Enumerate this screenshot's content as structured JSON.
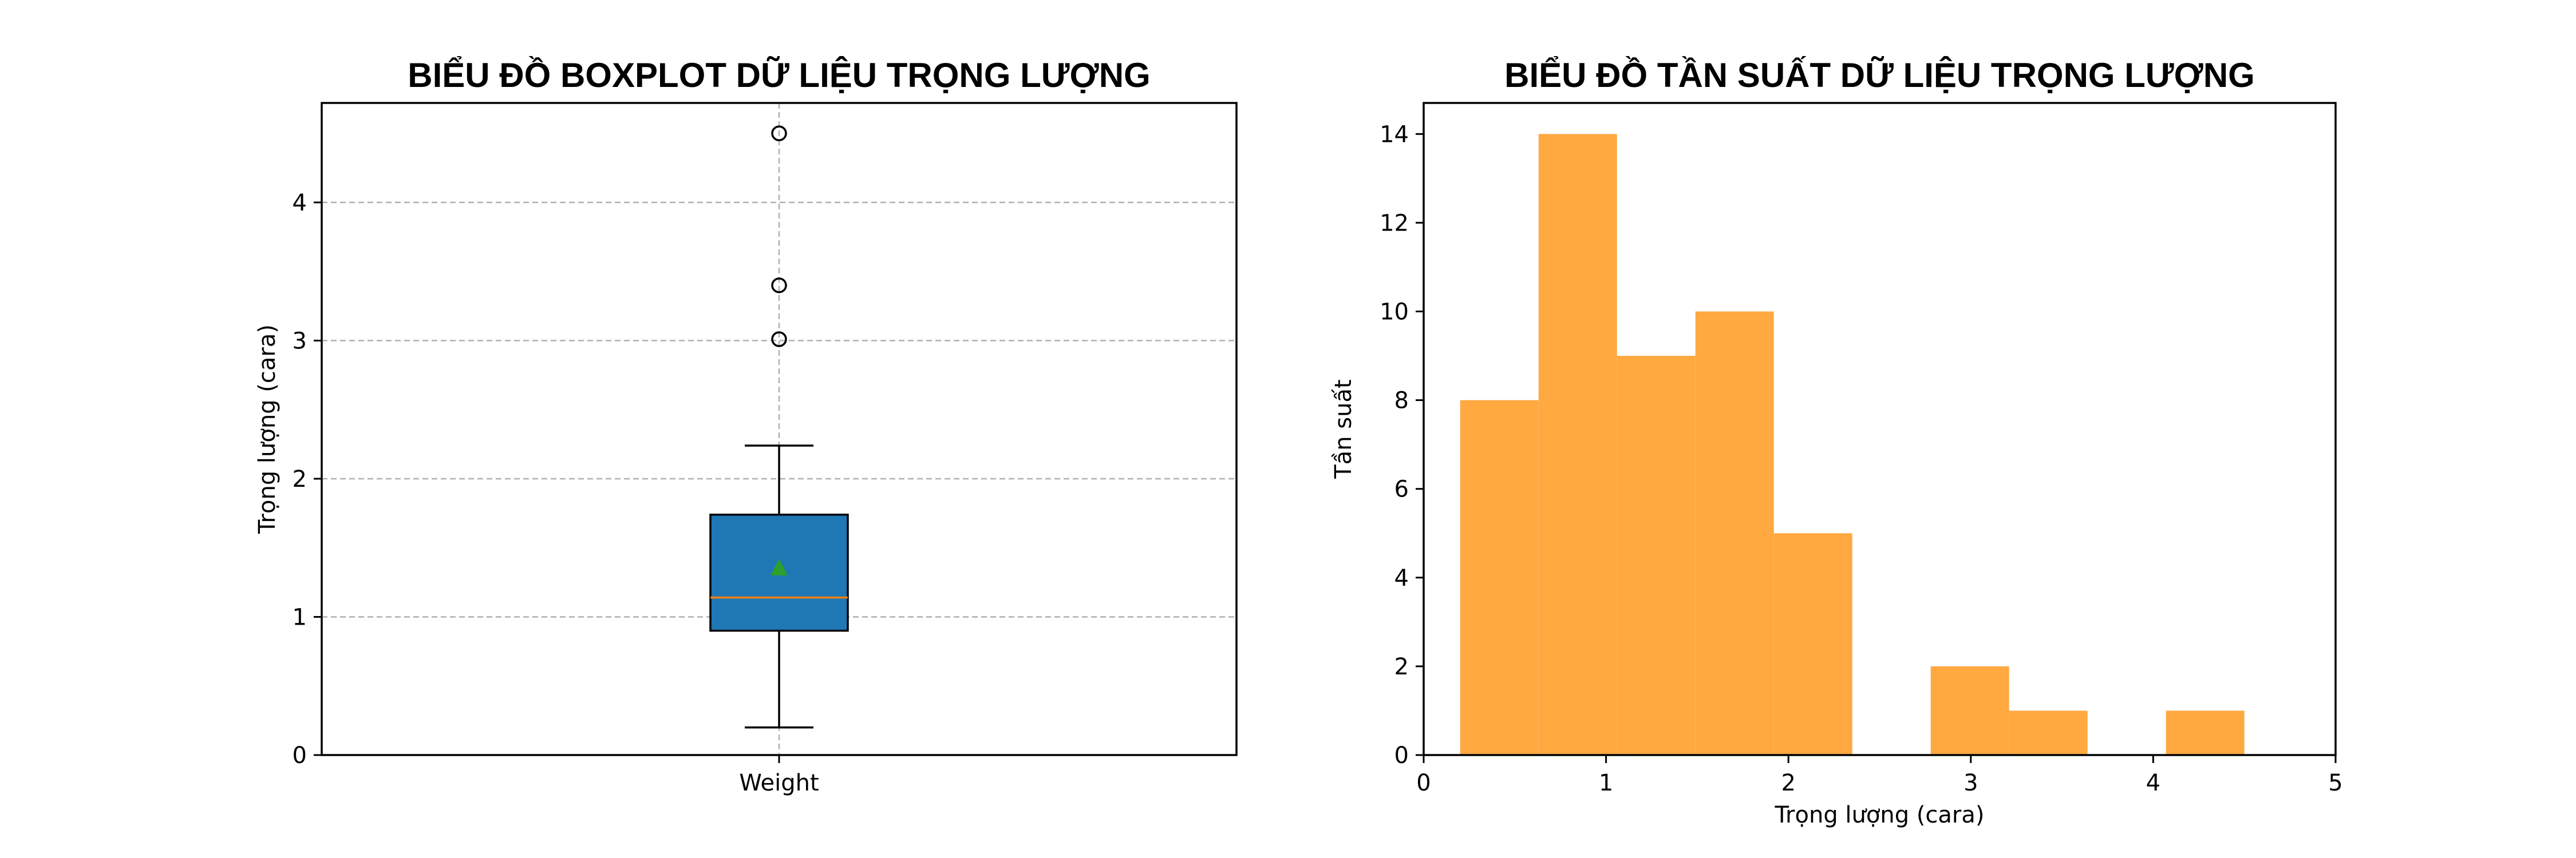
{
  "chart_data": [
    {
      "type": "box",
      "title": "BIỂU ĐỒ BOXPLOT DỮ LIỆU TRỌNG LƯỢNG",
      "xlabel": "",
      "ylabel": "Trọng lượng (cara)",
      "categories": [
        "Weight"
      ],
      "ylim": [
        0,
        4.72
      ],
      "yticks": [
        0,
        1,
        2,
        3,
        4
      ],
      "grid": true,
      "box": {
        "whisker_low": 0.2,
        "q1": 0.9,
        "median": 1.14,
        "q3": 1.74,
        "whisker_high": 2.24,
        "mean": 1.35,
        "outliers": [
          3.01,
          3.4,
          4.5
        ]
      },
      "colors": {
        "box": "#1f77b4",
        "median": "#ff7f0e",
        "mean": "#2ca02c",
        "grid": "#b0b0b0"
      }
    },
    {
      "type": "bar",
      "title": "BIỂU ĐỒ TẦN SUẤT DỮ LIỆU TRỌNG LƯỢNG",
      "xlabel": "Trọng lượng (cara)",
      "ylabel": "Tần suất",
      "xlim": [
        0,
        5
      ],
      "ylim": [
        0,
        14.7
      ],
      "xticks": [
        0,
        1,
        2,
        3,
        4,
        5
      ],
      "yticks": [
        0,
        2,
        4,
        6,
        8,
        10,
        12,
        14
      ],
      "bin_edges": [
        0.2,
        0.63,
        1.06,
        1.49,
        1.92,
        2.35,
        2.78,
        3.21,
        3.64,
        4.07,
        4.5
      ],
      "counts": [
        8,
        14,
        9,
        10,
        5,
        0,
        2,
        1,
        0,
        1
      ],
      "grid": false,
      "colors": {
        "bar": "#ffa940"
      }
    }
  ]
}
